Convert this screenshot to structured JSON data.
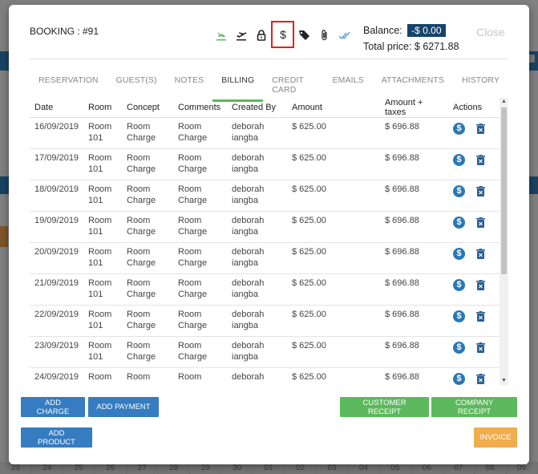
{
  "background": {
    "footer_days": [
      "23",
      "24",
      "25",
      "26",
      "27",
      "28",
      "29",
      "30",
      "01",
      "02",
      "03",
      "04",
      "05",
      "06",
      "07",
      "08",
      "09"
    ]
  },
  "modal": {
    "title": "BOOKING : #91",
    "icons": [
      "plane-arrival-icon",
      "plane-departure-icon",
      "lock-icon",
      "dollar-icon",
      "tag-icon",
      "paperclip-icon",
      "double-check-icon"
    ],
    "balance_label": "Balance:",
    "balance_value": "-$ 0.00",
    "total_price_label": "Total price: $ 6271.88",
    "close_label": "Close"
  },
  "tabs": [
    {
      "label": "RESERVATION",
      "active": false
    },
    {
      "label": "GUEST(S)",
      "active": false
    },
    {
      "label": "NOTES",
      "active": false
    },
    {
      "label": "BILLING",
      "active": true
    },
    {
      "label": "CREDIT CARD",
      "active": false
    },
    {
      "label": "EMAILS",
      "active": false
    },
    {
      "label": "ATTACHMENTS",
      "active": false
    },
    {
      "label": "HISTORY",
      "active": false
    }
  ],
  "table": {
    "headers": [
      "Date",
      "Room",
      "Concept",
      "Comments",
      "Created By",
      "Amount",
      "Amount + taxes",
      "Actions"
    ],
    "rows": [
      {
        "date": "16/09/2019",
        "room": "Room 101",
        "concept": "Room Charge",
        "comments": "Room Charge",
        "created_by": "deborah iangba",
        "amount": "$ 625.00",
        "amount_taxes": "$ 696.88"
      },
      {
        "date": "17/09/2019",
        "room": "Room 101",
        "concept": "Room Charge",
        "comments": "Room Charge",
        "created_by": "deborah iangba",
        "amount": "$ 625.00",
        "amount_taxes": "$ 696.88"
      },
      {
        "date": "18/09/2019",
        "room": "Room 101",
        "concept": "Room Charge",
        "comments": "Room Charge",
        "created_by": "deborah iangba",
        "amount": "$ 625.00",
        "amount_taxes": "$ 696.88"
      },
      {
        "date": "19/09/2019",
        "room": "Room 101",
        "concept": "Room Charge",
        "comments": "Room Charge",
        "created_by": "deborah iangba",
        "amount": "$ 625.00",
        "amount_taxes": "$ 696.88"
      },
      {
        "date": "20/09/2019",
        "room": "Room 101",
        "concept": "Room Charge",
        "comments": "Room Charge",
        "created_by": "deborah iangba",
        "amount": "$ 625.00",
        "amount_taxes": "$ 696.88"
      },
      {
        "date": "21/09/2019",
        "room": "Room 101",
        "concept": "Room Charge",
        "comments": "Room Charge",
        "created_by": "deborah iangba",
        "amount": "$ 625.00",
        "amount_taxes": "$ 696.88"
      },
      {
        "date": "22/09/2019",
        "room": "Room 101",
        "concept": "Room Charge",
        "comments": "Room Charge",
        "created_by": "deborah iangba",
        "amount": "$ 625.00",
        "amount_taxes": "$ 696.88"
      },
      {
        "date": "23/09/2019",
        "room": "Room 101",
        "concept": "Room Charge",
        "comments": "Room Charge",
        "created_by": "deborah iangba",
        "amount": "$ 625.00",
        "amount_taxes": "$ 696.88"
      },
      {
        "date": "24/09/2019",
        "room": "Room",
        "concept": "Room",
        "comments": "Room",
        "created_by": "deborah",
        "amount": "$ 625.00",
        "amount_taxes": "$ 696.88"
      }
    ]
  },
  "buttons": {
    "add_charge": "ADD CHARGE",
    "add_payment": "ADD PAYMENT",
    "customer_receipt": "CUSTOMER RECEIPT",
    "company_receipt": "COMPANY RECEIPT",
    "add_product": "ADD PRODUCT",
    "invoice": "INVOICE"
  },
  "colors": {
    "accent_green": "#5cb85c",
    "button_blue": "#357cc0",
    "button_orange": "#f0ad4e",
    "badge_navy": "#17436b",
    "highlight_red": "#e0211d"
  }
}
